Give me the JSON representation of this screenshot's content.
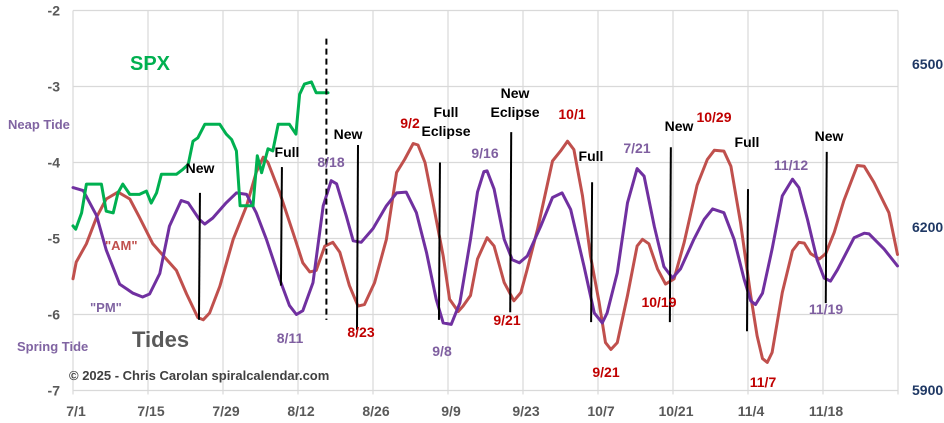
{
  "chart_data": {
    "type": "line",
    "title": "Tides",
    "subtitle": "SPX",
    "copyright": "©  2025 - Chris Carolan  spiralcalendar.com",
    "xlabel": "",
    "ylabel": "",
    "x_unit": "days since 7/1",
    "x_ticks": [
      {
        "day": 0,
        "label": "7/1"
      },
      {
        "day": 14,
        "label": "7/15"
      },
      {
        "day": 28,
        "label": "7/29"
      },
      {
        "day": 42,
        "label": "8/12"
      },
      {
        "day": 56,
        "label": "8/26"
      },
      {
        "day": 70,
        "label": "9/9"
      },
      {
        "day": 84,
        "label": "9/23"
      },
      {
        "day": 98,
        "label": "10/7"
      },
      {
        "day": 112,
        "label": "10/21"
      },
      {
        "day": 126,
        "label": "11/4"
      },
      {
        "day": 140,
        "label": "11/18"
      }
    ],
    "xlim": [
      0,
      154
    ],
    "ylim": [
      -7,
      -2
    ],
    "y_ticks": [
      "-2",
      "-3",
      "-4",
      "-5",
      "-6",
      "-7"
    ],
    "y2lim": [
      5900,
      6600
    ],
    "y2_ticks": [
      {
        "value": 6500,
        "label": "6500"
      },
      {
        "value": 6200,
        "label": "6200"
      },
      {
        "value": 5900,
        "label": "5900"
      }
    ],
    "y_axis_labels": {
      "top": "Neap Tide",
      "bottom": "Spring Tide"
    },
    "grid": true,
    "colors": {
      "pm": "#7030A0",
      "am": "#C0504D",
      "spx": "#00B050",
      "grid": "#D9D9D9",
      "tick": "#595959",
      "right_tick": "#1F3864",
      "moon": "#000000",
      "title": "#595959"
    },
    "series": [
      {
        "name": "\"PM\"",
        "axis": "left",
        "points": [
          [
            0,
            -4.33
          ],
          [
            1.9,
            -4.37
          ],
          [
            4.4,
            -4.7
          ],
          [
            6.2,
            -5.15
          ],
          [
            8.7,
            -5.6
          ],
          [
            11.2,
            -5.72
          ],
          [
            13,
            -5.77
          ],
          [
            14.3,
            -5.73
          ],
          [
            16.2,
            -5.46
          ],
          [
            18,
            -4.84
          ],
          [
            20.2,
            -4.5
          ],
          [
            21.5,
            -4.53
          ],
          [
            23.6,
            -4.75
          ],
          [
            24.6,
            -4.81
          ],
          [
            26.1,
            -4.73
          ],
          [
            28.6,
            -4.53
          ],
          [
            30.5,
            -4.4
          ],
          [
            32.4,
            -4.42
          ],
          [
            34.2,
            -4.66
          ],
          [
            36.1,
            -5.01
          ],
          [
            38.6,
            -5.54
          ],
          [
            40.4,
            -5.88
          ],
          [
            41.7,
            -6.0
          ],
          [
            42.9,
            -5.95
          ],
          [
            44.8,
            -5.58
          ],
          [
            46.7,
            -4.57
          ],
          [
            48.2,
            -4.24
          ],
          [
            49.2,
            -4.28
          ],
          [
            51,
            -4.7
          ],
          [
            52.3,
            -5.03
          ],
          [
            53.8,
            -5.05
          ],
          [
            56,
            -4.87
          ],
          [
            58.5,
            -4.57
          ],
          [
            60.4,
            -4.4
          ],
          [
            62.2,
            -4.39
          ],
          [
            64.1,
            -4.66
          ],
          [
            66,
            -5.19
          ],
          [
            67.8,
            -5.8
          ],
          [
            69.1,
            -6.11
          ],
          [
            70.6,
            -6.13
          ],
          [
            72.2,
            -5.85
          ],
          [
            74.2,
            -5.01
          ],
          [
            75.5,
            -4.39
          ],
          [
            76.7,
            -4.12
          ],
          [
            77.3,
            -4.11
          ],
          [
            78.6,
            -4.35
          ],
          [
            80.5,
            -5.01
          ],
          [
            82,
            -5.28
          ],
          [
            83.3,
            -5.32
          ],
          [
            84.8,
            -5.23
          ],
          [
            87.3,
            -4.84
          ],
          [
            89.5,
            -4.46
          ],
          [
            91.3,
            -4.4
          ],
          [
            92.9,
            -4.62
          ],
          [
            95.4,
            -5.37
          ],
          [
            97.3,
            -5.98
          ],
          [
            98.8,
            -6.11
          ],
          [
            99.7,
            -5.98
          ],
          [
            101.6,
            -5.45
          ],
          [
            103.5,
            -4.53
          ],
          [
            105.3,
            -4.08
          ],
          [
            106.6,
            -4.18
          ],
          [
            108.5,
            -4.84
          ],
          [
            110.3,
            -5.37
          ],
          [
            111.9,
            -5.52
          ],
          [
            113.4,
            -5.4
          ],
          [
            115.9,
            -5.01
          ],
          [
            117.8,
            -4.75
          ],
          [
            119.4,
            -4.61
          ],
          [
            121.5,
            -4.66
          ],
          [
            123.4,
            -5.01
          ],
          [
            125.3,
            -5.54
          ],
          [
            126.5,
            -5.82
          ],
          [
            127.4,
            -5.87
          ],
          [
            128.7,
            -5.72
          ],
          [
            130.5,
            -5.14
          ],
          [
            132.4,
            -4.44
          ],
          [
            134.3,
            -4.22
          ],
          [
            135.5,
            -4.33
          ],
          [
            137.1,
            -4.75
          ],
          [
            138.9,
            -5.28
          ],
          [
            140.2,
            -5.52
          ],
          [
            141.4,
            -5.56
          ],
          [
            142.7,
            -5.41
          ],
          [
            145.8,
            -4.99
          ],
          [
            147.7,
            -4.93
          ],
          [
            148.6,
            -4.94
          ],
          [
            151.4,
            -5.14
          ],
          [
            153.9,
            -5.36
          ]
        ]
      },
      {
        "name": "\"AM\"",
        "axis": "left",
        "points": [
          [
            0,
            -5.53
          ],
          [
            0.6,
            -5.31
          ],
          [
            2.5,
            -5.07
          ],
          [
            4.4,
            -4.72
          ],
          [
            6.2,
            -4.48
          ],
          [
            8.4,
            -4.39
          ],
          [
            10.6,
            -4.48
          ],
          [
            12.4,
            -4.72
          ],
          [
            14.9,
            -5.07
          ],
          [
            17.4,
            -5.27
          ],
          [
            19.3,
            -5.42
          ],
          [
            21.2,
            -5.73
          ],
          [
            23.3,
            -6.04
          ],
          [
            24.3,
            -6.07
          ],
          [
            25.5,
            -5.98
          ],
          [
            27.4,
            -5.63
          ],
          [
            29.9,
            -5.01
          ],
          [
            32.4,
            -4.57
          ],
          [
            34.2,
            -4.13
          ],
          [
            35.5,
            -3.93
          ],
          [
            36.4,
            -4.0
          ],
          [
            38.6,
            -4.4
          ],
          [
            41.1,
            -4.93
          ],
          [
            42.9,
            -5.32
          ],
          [
            44.2,
            -5.44
          ],
          [
            45.4,
            -5.42
          ],
          [
            47,
            -5.1
          ],
          [
            48.5,
            -5.05
          ],
          [
            49.8,
            -5.18
          ],
          [
            51.6,
            -5.62
          ],
          [
            53.2,
            -5.89
          ],
          [
            54.4,
            -5.87
          ],
          [
            56.3,
            -5.58
          ],
          [
            58.5,
            -5.01
          ],
          [
            60.4,
            -4.13
          ],
          [
            61.9,
            -3.96
          ],
          [
            63.5,
            -3.75
          ],
          [
            64.4,
            -3.77
          ],
          [
            65.7,
            -4.0
          ],
          [
            67.2,
            -4.53
          ],
          [
            69.1,
            -5.23
          ],
          [
            70.3,
            -5.8
          ],
          [
            71.9,
            -5.96
          ],
          [
            72.8,
            -5.89
          ],
          [
            74.2,
            -5.75
          ],
          [
            75.5,
            -5.27
          ],
          [
            77.3,
            -4.99
          ],
          [
            78.6,
            -5.1
          ],
          [
            80.5,
            -5.58
          ],
          [
            82.3,
            -5.82
          ],
          [
            83.6,
            -5.71
          ],
          [
            84.8,
            -5.4
          ],
          [
            86.7,
            -4.88
          ],
          [
            89.5,
            -3.98
          ],
          [
            91,
            -3.85
          ],
          [
            92.3,
            -3.72
          ],
          [
            93.5,
            -3.83
          ],
          [
            95.1,
            -4.44
          ],
          [
            96.6,
            -5.23
          ],
          [
            98.2,
            -5.84
          ],
          [
            99.4,
            -6.37
          ],
          [
            100.4,
            -6.46
          ],
          [
            101.6,
            -6.37
          ],
          [
            103.5,
            -5.75
          ],
          [
            105.3,
            -5.1
          ],
          [
            106.3,
            -5.01
          ],
          [
            107.5,
            -5.07
          ],
          [
            109.1,
            -5.4
          ],
          [
            110.6,
            -5.6
          ],
          [
            112.2,
            -5.53
          ],
          [
            114.1,
            -5.05
          ],
          [
            116.5,
            -4.3
          ],
          [
            118.4,
            -3.96
          ],
          [
            119.7,
            -3.84
          ],
          [
            121.5,
            -3.85
          ],
          [
            122.8,
            -4.05
          ],
          [
            124.6,
            -4.79
          ],
          [
            126.5,
            -5.75
          ],
          [
            127.7,
            -6.28
          ],
          [
            128.7,
            -6.58
          ],
          [
            129.6,
            -6.63
          ],
          [
            130.5,
            -6.5
          ],
          [
            132.4,
            -5.71
          ],
          [
            134.3,
            -5.16
          ],
          [
            135.5,
            -5.05
          ],
          [
            136.5,
            -5.06
          ],
          [
            137.7,
            -5.2
          ],
          [
            139.3,
            -5.27
          ],
          [
            140.5,
            -5.2
          ],
          [
            142.1,
            -4.92
          ],
          [
            143.9,
            -4.5
          ],
          [
            146.4,
            -4.04
          ],
          [
            147.7,
            -4.05
          ],
          [
            149.5,
            -4.26
          ],
          [
            152.3,
            -4.66
          ],
          [
            153.9,
            -5.21
          ]
        ]
      },
      {
        "name": "SPX",
        "axis": "right",
        "points": [
          [
            0,
            6202
          ],
          [
            0.5,
            6196
          ],
          [
            1.6,
            6226
          ],
          [
            2.5,
            6279
          ],
          [
            5.3,
            6279
          ],
          [
            6.2,
            6229
          ],
          [
            7.5,
            6226
          ],
          [
            8.4,
            6263
          ],
          [
            9.3,
            6279
          ],
          [
            10.6,
            6260
          ],
          [
            12.4,
            6260
          ],
          [
            13.7,
            6266
          ],
          [
            14.6,
            6244
          ],
          [
            15.6,
            6263
          ],
          [
            16.5,
            6297
          ],
          [
            19.3,
            6297
          ],
          [
            20.5,
            6306
          ],
          [
            21.5,
            6315
          ],
          [
            22.4,
            6358
          ],
          [
            23.3,
            6364
          ],
          [
            24.6,
            6389
          ],
          [
            27.4,
            6389
          ],
          [
            28.6,
            6371
          ],
          [
            29.6,
            6361
          ],
          [
            30.5,
            6340
          ],
          [
            31.2,
            6239
          ],
          [
            33.6,
            6239
          ],
          [
            34.4,
            6331
          ],
          [
            35.2,
            6300
          ],
          [
            36.4,
            6344
          ],
          [
            37.3,
            6340
          ],
          [
            38.3,
            6389
          ],
          [
            40.4,
            6389
          ],
          [
            41.6,
            6371
          ],
          [
            42.3,
            6444
          ],
          [
            43.2,
            6463
          ],
          [
            44.5,
            6467
          ],
          [
            45.4,
            6447
          ],
          [
            47.6,
            6447
          ]
        ]
      }
    ],
    "today_marker": {
      "day": 47.3,
      "top": -2.37,
      "bottom": -6.07
    },
    "moon_phases": [
      {
        "day": 23.7,
        "label": "New",
        "top": -4.4,
        "bottom": -6.07
      },
      {
        "day": 39,
        "label": "Full",
        "top": -4.06,
        "bottom": -5.62
      },
      {
        "day": 53.2,
        "label": "New",
        "top": -3.77,
        "bottom": -6.2
      },
      {
        "day": 68.5,
        "label": "Full Eclipse",
        "top": -4.0,
        "bottom": -6.07
      },
      {
        "day": 81.8,
        "label": "New Eclipse",
        "top": -3.6,
        "bottom": -5.97
      },
      {
        "day": 96.9,
        "label": "Full",
        "top": -4.26,
        "bottom": -6.1
      },
      {
        "day": 111.6,
        "label": "New",
        "top": -3.8,
        "bottom": -6.1
      },
      {
        "day": 126,
        "label": "Full",
        "top": -4.35,
        "bottom": -6.22
      },
      {
        "day": 140.7,
        "label": "New",
        "top": -3.86,
        "bottom": -5.85
      }
    ],
    "date_annotations": [
      {
        "text": "8/18",
        "series": "PM"
      },
      {
        "text": "9/2",
        "series": "AM"
      },
      {
        "text": "9/16",
        "series": "PM"
      },
      {
        "text": "10/1",
        "series": "AM"
      },
      {
        "text": "7/21",
        "series": "PM"
      },
      {
        "text": "10/29",
        "series": "AM"
      },
      {
        "text": "11/12",
        "series": "PM"
      },
      {
        "text": "8/11",
        "series": "PM"
      },
      {
        "text": "8/23",
        "series": "AM"
      },
      {
        "text": "9/8",
        "series": "PM"
      },
      {
        "text": "9/21",
        "series": "AM"
      },
      {
        "text": "9/21",
        "series": "AM"
      },
      {
        "text": "10/19",
        "series": "AM"
      },
      {
        "text": "11/7",
        "series": "AM"
      },
      {
        "text": "11/19",
        "series": "PM"
      }
    ]
  }
}
